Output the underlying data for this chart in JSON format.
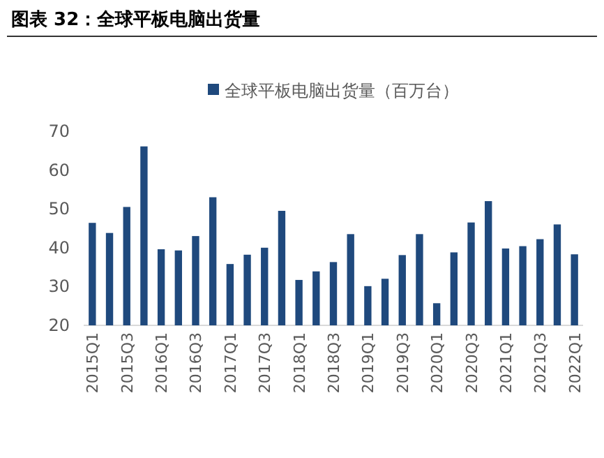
{
  "chart_data": {
    "type": "bar",
    "title": "图表 32：全球平板电脑出货量",
    "categories": [
      "2015Q1",
      null,
      "2015Q3",
      null,
      "2016Q1",
      null,
      "2016Q3",
      null,
      "2017Q1",
      null,
      "2017Q3",
      null,
      "2018Q1",
      null,
      "2018Q3",
      null,
      "2019Q1",
      null,
      "2019Q3",
      null,
      "2020Q1",
      null,
      "2020Q3",
      null,
      "2021Q1",
      null,
      "2021Q3",
      null,
      "2022Q1"
    ],
    "series": [
      {
        "name": "全球平板电脑出货量（百万台）",
        "color": "#1f497d",
        "values": [
          46.4,
          43.8,
          50.5,
          66.1,
          39.6,
          39.3,
          43.0,
          53.0,
          35.8,
          38.2,
          40.0,
          49.5,
          31.7,
          33.9,
          36.3,
          43.5,
          30.1,
          32.0,
          38.1,
          43.5,
          25.7,
          38.8,
          46.5,
          52.0,
          39.8,
          40.4,
          42.2,
          46.0,
          38.3
        ]
      }
    ],
    "ylim": [
      20,
      70
    ],
    "yticks": [
      20,
      30,
      40,
      50,
      60,
      70
    ],
    "grid": false,
    "legend": "top"
  }
}
